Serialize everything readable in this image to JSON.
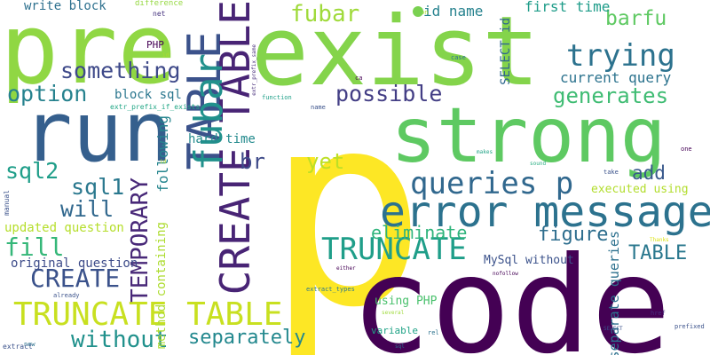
{
  "word_cloud": {
    "background": "#ffffff",
    "words": [
      {
        "text": "p",
        "color": "#fde725",
        "vertical": false
      },
      {
        "text": "code",
        "color": "#440154",
        "vertical": false
      },
      {
        "text": "exist",
        "color": "#84d44b",
        "vertical": false
      },
      {
        "text": "strong",
        "color": "#5ec962",
        "vertical": false
      },
      {
        "text": "pre",
        "color": "#90d743",
        "vertical": false
      },
      {
        "text": "run",
        "color": "#355f8d",
        "vertical": false
      },
      {
        "text": "error message",
        "color": "#2c728e",
        "vertical": false
      },
      {
        "text": "queries p",
        "color": "#31688e",
        "vertical": false
      },
      {
        "text": "TRUNCATE TABLE",
        "color": "#c8e020",
        "vertical": false
      },
      {
        "text": "TABLE",
        "color": "#3b528b",
        "vertical": true
      },
      {
        "text": "CREATE TABLE",
        "color": "#482475",
        "vertical": true
      },
      {
        "text": "fubar",
        "color": "#21918c",
        "vertical": true
      },
      {
        "text": "TRUNCATE",
        "color": "#1f9e89",
        "vertical": false
      },
      {
        "text": "trying",
        "color": "#2c728e",
        "vertical": false
      },
      {
        "text": "option",
        "color": "#26828e",
        "vertical": false
      },
      {
        "text": "something",
        "color": "#3e4989",
        "vertical": false
      },
      {
        "text": "possible",
        "color": "#433e85",
        "vertical": false
      },
      {
        "text": "generates",
        "color": "#3fbc73",
        "vertical": false
      },
      {
        "text": "TEMPORARY",
        "color": "#482878",
        "vertical": true
      },
      {
        "text": "fill",
        "color": "#35b779",
        "vertical": false
      },
      {
        "text": "CREATE",
        "color": "#3b528b",
        "vertical": false
      },
      {
        "text": "sql2",
        "color": "#1f9e89",
        "vertical": false
      },
      {
        "text": "sql1",
        "color": "#2a788e",
        "vertical": false
      },
      {
        "text": "will",
        "color": "#31688e",
        "vertical": false
      },
      {
        "text": "without",
        "color": "#21918c",
        "vertical": false
      },
      {
        "text": "separately",
        "color": "#23888e",
        "vertical": false
      },
      {
        "text": "yet",
        "color": "#bddf26",
        "vertical": false
      },
      {
        "text": "eliminate",
        "color": "#2fb47c",
        "vertical": false
      },
      {
        "text": "figure",
        "color": "#2e6e8e",
        "vertical": false
      },
      {
        "text": "TABLE",
        "color": "#2a788e",
        "vertical": false
      },
      {
        "text": "add",
        "color": "#38588c",
        "vertical": false
      },
      {
        "text": "barfu",
        "color": "#5ec962",
        "vertical": false
      },
      {
        "text": "fubar",
        "color": "#9fda3a",
        "vertical": false
      },
      {
        "text": "br",
        "color": "#3e4a89",
        "vertical": false
      },
      {
        "text": "id name",
        "color": "#26828e",
        "vertical": false
      },
      {
        "text": "first time",
        "color": "#1e9c89",
        "vertical": false
      },
      {
        "text": "current query",
        "color": "#2c738e",
        "vertical": false
      },
      {
        "text": "hard time",
        "color": "#238a8d",
        "vertical": false
      },
      {
        "text": "updated question",
        "color": "#b5de2b",
        "vertical": false
      },
      {
        "text": "original question",
        "color": "#3e4c8a",
        "vertical": false
      },
      {
        "text": "write block",
        "color": "#2d708e",
        "vertical": false
      },
      {
        "text": "block sql",
        "color": "#2a768e",
        "vertical": false
      },
      {
        "text": "executed using",
        "color": "#b2dd2d",
        "vertical": false
      },
      {
        "text": "using PHP",
        "color": "#4ac16d",
        "vertical": false
      },
      {
        "text": "MySql without",
        "color": "#3b528b",
        "vertical": false
      },
      {
        "text": "variable",
        "color": "#20a386",
        "vertical": false
      },
      {
        "text": "SELECT id",
        "color": "#31688e",
        "vertical": true
      },
      {
        "text": "following",
        "color": "#25858e",
        "vertical": true
      },
      {
        "text": "method containing",
        "color": "#addc30",
        "vertical": true
      },
      {
        "text": "separate queries",
        "color": "#2d718e",
        "vertical": true
      },
      {
        "text": "PHP",
        "color": "#440154",
        "vertical": false
      },
      {
        "text": "difference",
        "color": "#95d840",
        "vertical": false
      },
      {
        "text": "net",
        "color": "#46337f",
        "vertical": false
      },
      {
        "text": "extr_prefix_if_exists",
        "color": "#21a685",
        "vertical": false
      },
      {
        "text": "function",
        "color": "#1fa088",
        "vertical": false
      },
      {
        "text": "extr_prefix_same",
        "color": "#472d7b",
        "vertical": true
      },
      {
        "text": "ca",
        "color": "#440154",
        "vertical": false
      },
      {
        "text": "case",
        "color": "#2c728e",
        "vertical": false
      },
      {
        "text": "name",
        "color": "#3b528b",
        "vertical": false
      },
      {
        "text": "makes",
        "color": "#20a386",
        "vertical": false
      },
      {
        "text": "sound",
        "color": "#27ad81",
        "vertical": false
      },
      {
        "text": "take",
        "color": "#3b528b",
        "vertical": false
      },
      {
        "text": "one",
        "color": "#440154",
        "vertical": false
      },
      {
        "text": "Thanks",
        "color": "#dde318",
        "vertical": false
      },
      {
        "text": "extract_types",
        "color": "#2a788e",
        "vertical": false
      },
      {
        "text": "either",
        "color": "#440154",
        "vertical": false
      },
      {
        "text": "nofollow",
        "color": "#440154",
        "vertical": false
      },
      {
        "text": "href",
        "color": "#472d7b",
        "vertical": false
      },
      {
        "text": "prefixed",
        "color": "#3b528b",
        "vertical": false
      },
      {
        "text": "rel",
        "color": "#2c728e",
        "vertical": false
      },
      {
        "text": "manual",
        "color": "#3b528b",
        "vertical": true
      },
      {
        "text": "extract",
        "color": "#3b528b",
        "vertical": false
      },
      {
        "text": "new",
        "color": "#2c728e",
        "vertical": false
      },
      {
        "text": "already",
        "color": "#3b528b",
        "vertical": false
      },
      {
        "text": "several",
        "color": "#9fda3a",
        "vertical": false
      },
      {
        "text": "sql",
        "color": "#2c728e",
        "vertical": false
      },
      {
        "text": "SELECT",
        "color": "#3b528b",
        "vertical": false
      },
      {
        "text": "on",
        "color": "#addc30",
        "vertical": false
      },
      {
        "text": "id",
        "color": "#b5de2b",
        "vertical": false
      },
      {
        "text": "id",
        "color": "#addc30",
        "vertical": false
      }
    ],
    "dot_color": "#7ad151"
  }
}
